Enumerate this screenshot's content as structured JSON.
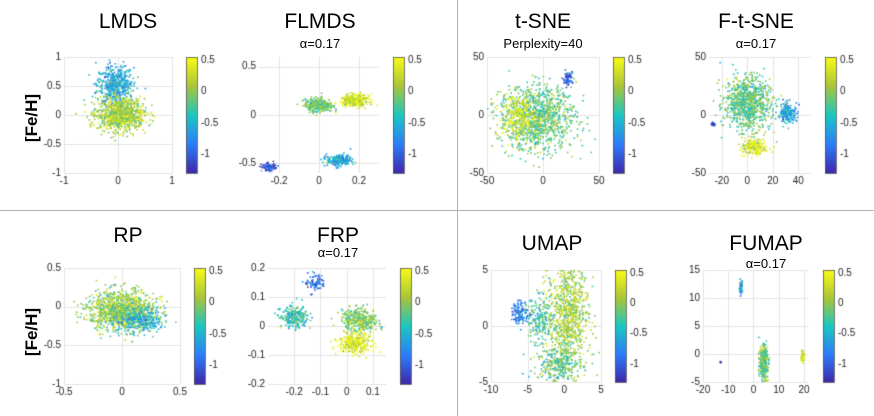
{
  "figure": {
    "row_labels": [
      "[Fe/H]",
      "[Fe/H]"
    ],
    "colorbar_ticks": [
      "0.5",
      "0",
      "-0.5",
      "-1"
    ],
    "colormap": [
      "#3e26a8",
      "#2c7dfb",
      "#1ac7c2",
      "#a9c538",
      "#f9fb15"
    ]
  },
  "chart_data": [
    {
      "id": "lmds",
      "type": "scatter",
      "title": "LMDS",
      "subtitle": "",
      "xlim": [
        -1,
        1
      ],
      "ylim": [
        -1,
        1
      ],
      "xticks": [
        "-1",
        "0",
        "1"
      ],
      "yticks": [
        "1",
        "0.5",
        "0",
        "-0.5",
        "-1"
      ],
      "cbar_ticks": [
        "0.5",
        "0",
        "-0.5",
        "-1"
      ],
      "clim": [
        -1.3,
        0.55
      ],
      "clusters": [
        {
          "cx": -0.05,
          "cy": 0.52,
          "sx": 0.17,
          "sy": 0.17,
          "n": 500,
          "c": -0.55
        },
        {
          "cx": 0.05,
          "cy": 0.0,
          "sx": 0.22,
          "sy": 0.14,
          "n": 900,
          "c": 0.12
        }
      ]
    },
    {
      "id": "flmds",
      "type": "scatter",
      "title": "FLMDS",
      "subtitle": "α=0.17",
      "xlim": [
        -0.3,
        0.3
      ],
      "ylim": [
        -0.6,
        0.6
      ],
      "xticks": [
        "-0.2",
        "0",
        "0.2"
      ],
      "yticks": [
        "0.5",
        "0",
        "-0.5"
      ],
      "cbar_ticks": [
        "0.5",
        "0",
        "-0.5",
        "-1"
      ],
      "clim": [
        -1.3,
        0.55
      ],
      "clusters": [
        {
          "cx": -0.25,
          "cy": -0.54,
          "sx": 0.018,
          "sy": 0.018,
          "n": 90,
          "c": -1.05
        },
        {
          "cx": 0.0,
          "cy": 0.1,
          "sx": 0.035,
          "sy": 0.035,
          "n": 300,
          "c": -0.1
        },
        {
          "cx": 0.18,
          "cy": 0.15,
          "sx": 0.035,
          "sy": 0.03,
          "n": 300,
          "c": 0.35
        },
        {
          "cx": 0.1,
          "cy": -0.47,
          "sx": 0.03,
          "sy": 0.028,
          "n": 250,
          "c": -0.55
        }
      ]
    },
    {
      "id": "tsne",
      "type": "scatter",
      "title": "t-SNE",
      "subtitle": "Perplexity=40",
      "xlim": [
        -50,
        50
      ],
      "ylim": [
        -50,
        50
      ],
      "xticks": [
        "-50",
        "0",
        "50"
      ],
      "yticks": [
        "50",
        "0",
        "-50"
      ],
      "cbar_ticks": [
        "0.5",
        "0",
        "-0.5",
        "-1"
      ],
      "clim": [
        -1.3,
        0.55
      ],
      "clusters": [
        {
          "cx": -5,
          "cy": -2,
          "sx": 17,
          "sy": 14,
          "n": 1100,
          "c": -0.15
        },
        {
          "cx": -22,
          "cy": -2,
          "sx": 8,
          "sy": 10,
          "n": 250,
          "c": 0.35
        },
        {
          "cx": 22,
          "cy": 32,
          "sx": 3,
          "sy": 3,
          "n": 60,
          "c": -1.0
        }
      ]
    },
    {
      "id": "ftsne",
      "type": "scatter",
      "title": "F-t-SNE",
      "subtitle": "α=0.17",
      "xlim": [
        -30,
        50
      ],
      "ylim": [
        -50,
        50
      ],
      "xticks": [
        "-20",
        "0",
        "20",
        "40"
      ],
      "yticks": [
        "50",
        "0",
        "-50"
      ],
      "cbar_ticks": [
        "0.5",
        "0",
        "-0.5",
        "-1"
      ],
      "clim": [
        -1.3,
        0.55
      ],
      "clusters": [
        {
          "cx": 0,
          "cy": 10,
          "sx": 9,
          "sy": 11,
          "n": 900,
          "c": -0.15
        },
        {
          "cx": 32,
          "cy": 2,
          "sx": 3.5,
          "sy": 4,
          "n": 200,
          "c": -0.6
        },
        {
          "cx": 5,
          "cy": -28,
          "sx": 4.5,
          "sy": 4,
          "n": 200,
          "c": 0.35
        },
        {
          "cx": -27,
          "cy": -8,
          "sx": 0.8,
          "sy": 0.8,
          "n": 20,
          "c": -1.0
        }
      ]
    },
    {
      "id": "rp",
      "type": "scatter",
      "title": "RP",
      "subtitle": "",
      "xlim": [
        -0.5,
        0.5
      ],
      "ylim": [
        -1,
        0.5
      ],
      "xticks": [
        "-0.5",
        "0",
        "0.5"
      ],
      "yticks": [
        "0.5",
        "0",
        "-0.5",
        "-1"
      ],
      "cbar_ticks": [
        "0.5",
        "0",
        "-0.5",
        "-1"
      ],
      "clim": [
        -1.3,
        0.55
      ],
      "clusters": [
        {
          "cx": 0.0,
          "cy": -0.05,
          "sx": 0.14,
          "sy": 0.13,
          "n": 1100,
          "c": 0.05
        },
        {
          "cx": 0.15,
          "cy": -0.18,
          "sx": 0.11,
          "sy": 0.08,
          "n": 300,
          "c": -0.5
        }
      ]
    },
    {
      "id": "frp",
      "type": "scatter",
      "title": "FRP",
      "subtitle": "α=0.17",
      "xlim": [
        -0.3,
        0.15
      ],
      "ylim": [
        -0.2,
        0.2
      ],
      "xticks": [
        "-0.2",
        "-0.1",
        "0",
        "0.1"
      ],
      "yticks": [
        "0.2",
        "0.1",
        "0",
        "-0.1",
        "-0.2"
      ],
      "cbar_ticks": [
        "0.5",
        "0",
        "-0.5",
        "-1"
      ],
      "clim": [
        -1.3,
        0.55
      ],
      "clusters": [
        {
          "cx": -0.12,
          "cy": 0.15,
          "sx": 0.02,
          "sy": 0.015,
          "n": 80,
          "c": -0.9
        },
        {
          "cx": -0.2,
          "cy": 0.03,
          "sx": 0.025,
          "sy": 0.018,
          "n": 250,
          "c": -0.35
        },
        {
          "cx": 0.05,
          "cy": 0.02,
          "sx": 0.035,
          "sy": 0.02,
          "n": 350,
          "c": -0.05
        },
        {
          "cx": 0.03,
          "cy": -0.06,
          "sx": 0.03,
          "sy": 0.018,
          "n": 300,
          "c": 0.4
        }
      ]
    },
    {
      "id": "umap",
      "type": "scatter",
      "title": "UMAP",
      "subtitle": "",
      "xlim": [
        -10,
        5
      ],
      "ylim": [
        -5,
        5
      ],
      "xticks": [
        "-10",
        "-5",
        "0",
        "5"
      ],
      "yticks": [
        "5",
        "0",
        "-5"
      ],
      "cbar_ticks": [
        "0.5",
        "0",
        "-0.5",
        "-1"
      ],
      "clim": [
        -1.3,
        0.55
      ],
      "clusters": [
        {
          "cx": 0.5,
          "cy": 1.0,
          "sx": 1.4,
          "sy": 2.5,
          "n": 900,
          "c": 0.1
        },
        {
          "cx": -3.5,
          "cy": 0.5,
          "sx": 1.0,
          "sy": 1.0,
          "n": 200,
          "c": -0.3
        },
        {
          "cx": -6,
          "cy": 1.2,
          "sx": 0.6,
          "sy": 0.5,
          "n": 120,
          "c": -0.8
        },
        {
          "cx": -1,
          "cy": -3.5,
          "sx": 1.5,
          "sy": 0.8,
          "n": 250,
          "c": -0.2
        }
      ]
    },
    {
      "id": "fumap",
      "type": "scatter",
      "title": "FUMAP",
      "subtitle": "α=0.17",
      "xlim": [
        -20,
        22
      ],
      "ylim": [
        -5,
        15
      ],
      "xticks": [
        "-20",
        "-10",
        "0",
        "10",
        "20"
      ],
      "yticks": [
        "15",
        "10",
        "5",
        "0",
        "-5"
      ],
      "cbar_ticks": [
        "0.5",
        "0",
        "-0.5",
        "-1"
      ],
      "clim": [
        -1.3,
        0.55
      ],
      "clusters": [
        {
          "cx": -5,
          "cy": 12,
          "sx": 0.4,
          "sy": 0.6,
          "n": 50,
          "c": -0.6
        },
        {
          "cx": 4,
          "cy": -1.5,
          "sx": 0.8,
          "sy": 1.4,
          "n": 400,
          "c": -0.1
        },
        {
          "cx": 19.5,
          "cy": -0.5,
          "sx": 0.3,
          "sy": 0.5,
          "n": 60,
          "c": 0.35
        },
        {
          "cx": -13,
          "cy": -1.5,
          "sx": 0.1,
          "sy": 0.1,
          "n": 5,
          "c": -1.0
        }
      ]
    }
  ]
}
